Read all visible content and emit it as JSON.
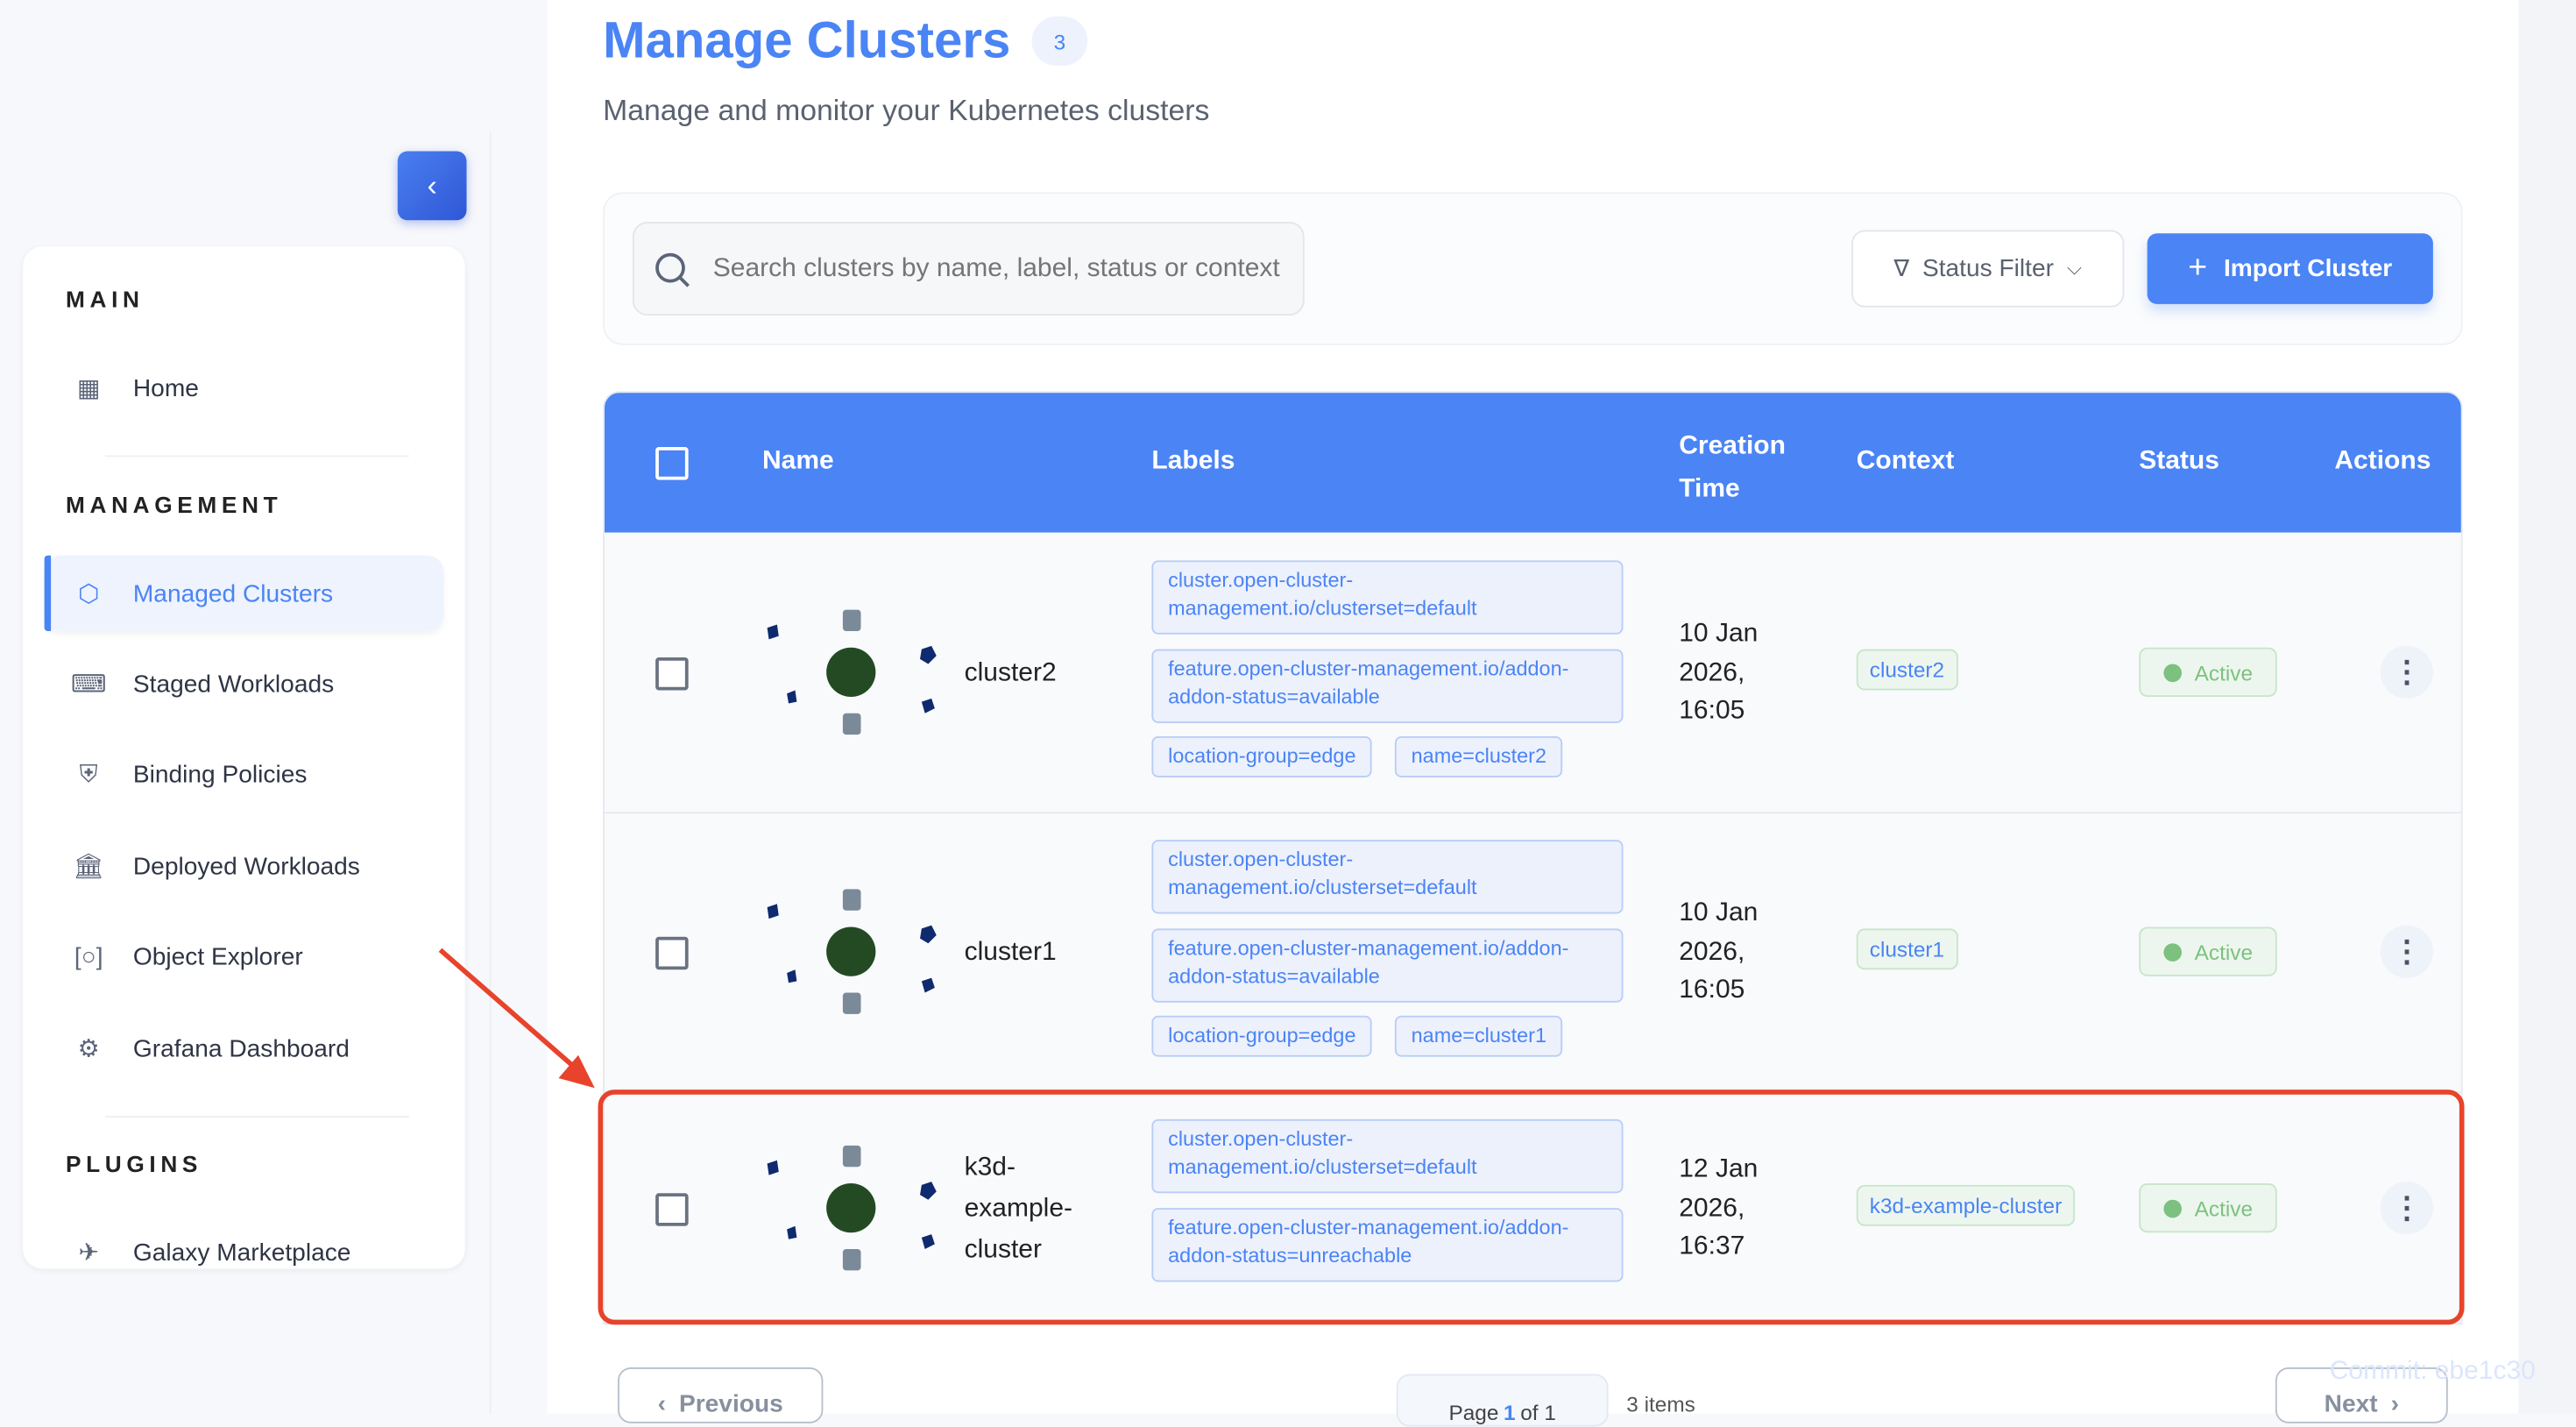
{
  "sidebar": {
    "collapse_icon": "chevron-left-icon",
    "sections": [
      {
        "title": "MAIN",
        "items": [
          {
            "label": "Home",
            "icon": "dashboard-icon"
          }
        ]
      },
      {
        "title": "MANAGEMENT",
        "items": [
          {
            "label": "Managed Clusters",
            "icon": "cube-icon",
            "active": true
          },
          {
            "label": "Staged Workloads",
            "icon": "terminal-icon"
          },
          {
            "label": "Binding Policies",
            "icon": "shield-search-icon"
          },
          {
            "label": "Deployed Workloads",
            "icon": "bank-check-icon"
          },
          {
            "label": "Object Explorer",
            "icon": "scan-icon"
          },
          {
            "label": "Grafana Dashboard",
            "icon": "grafana-icon"
          }
        ]
      },
      {
        "title": "PLUGINS",
        "items": [
          {
            "label": "Galaxy Marketplace",
            "icon": "rocket-icon"
          }
        ]
      }
    ]
  },
  "header": {
    "title": "Manage Clusters",
    "count": "3",
    "subtitle": "Manage and monitor your Kubernetes clusters"
  },
  "toolbar": {
    "search_placeholder": "Search clusters by name, label, status or context",
    "status_filter": "Status Filter",
    "import_label": "Import Cluster"
  },
  "table": {
    "columns": [
      "Name",
      "Labels",
      "Creation Time",
      "Context",
      "Status",
      "Actions"
    ],
    "creation_line1": "Creation",
    "creation_line2": "Time",
    "rows": [
      {
        "name": "cluster2",
        "labels": [
          "cluster.open-cluster-management.io/clusterset=default",
          "feature.open-cluster-management.io/addon-addon-status=available",
          "location-group=edge",
          "name=cluster2"
        ],
        "time": [
          "10 Jan",
          "2026,",
          "16:05"
        ],
        "context": "cluster2",
        "status": "Active"
      },
      {
        "name": "cluster1",
        "labels": [
          "cluster.open-cluster-management.io/clusterset=default",
          "feature.open-cluster-management.io/addon-addon-status=available",
          "location-group=edge",
          "name=cluster1"
        ],
        "time": [
          "10 Jan",
          "2026,",
          "16:05"
        ],
        "context": "cluster1",
        "status": "Active"
      },
      {
        "name": "k3d-example-cluster",
        "name_lines": [
          "k3d-",
          "example-",
          "cluster"
        ],
        "labels": [
          "cluster.open-cluster-management.io/clusterset=default",
          "feature.open-cluster-management.io/addon-addon-status=unreachable"
        ],
        "time": [
          "12 Jan",
          "2026,",
          "16:37"
        ],
        "context": "k3d-example-cluster",
        "status": "Active",
        "highlighted": true
      }
    ]
  },
  "pagination": {
    "previous": "Previous",
    "next": "Next",
    "page_prefix": "Page",
    "page": "1",
    "page_suffix": "of 1",
    "items": "3 items"
  },
  "footer": {
    "commit": "Commit: ebe1c30"
  },
  "colors": {
    "accent": "#4a84f5",
    "active_green": "#7cc17f",
    "highlight": "#e8432b"
  }
}
